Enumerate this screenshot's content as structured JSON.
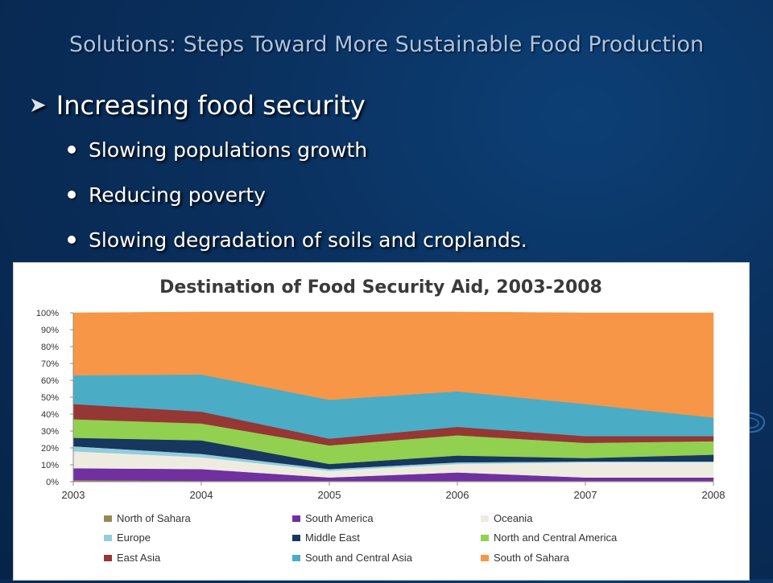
{
  "slide": {
    "title": "Solutions: Steps Toward More Sustainable Food Production",
    "main_bullet": "Increasing food security",
    "sub_bullets": [
      "Slowing populations growth",
      "Reducing poverty",
      "Slowing degradation of soils and croplands."
    ]
  },
  "colors": {
    "title_text": "#a9c4e4",
    "background": "#0a2f5c"
  },
  "chart_data": {
    "type": "area",
    "stacked": true,
    "percent": true,
    "title": "Destination of Food Security Aid, 2003-2008",
    "xlabel": "",
    "ylabel": "",
    "x": [
      "2003",
      "2004",
      "2005",
      "2006",
      "2007",
      "2008"
    ],
    "yticks": [
      "0%",
      "10%",
      "20%",
      "30%",
      "40%",
      "50%",
      "60%",
      "70%",
      "80%",
      "90%",
      "100%"
    ],
    "ylim": [
      0,
      100
    ],
    "grid": false,
    "legend": "bottom",
    "series": [
      {
        "name": "North of Sahara",
        "color": "#948a54",
        "values": [
          1,
          0.5,
          0.5,
          0.5,
          0.5,
          0.5
        ]
      },
      {
        "name": "South America",
        "color": "#7030a0",
        "values": [
          7,
          7,
          2,
          5,
          2,
          2
        ]
      },
      {
        "name": "Oceania",
        "color": "#eeece1",
        "values": [
          10,
          7,
          4,
          5,
          9,
          9
        ]
      },
      {
        "name": "Europe",
        "color": "#93cddd",
        "values": [
          3,
          2,
          1,
          1,
          0.5,
          0.5
        ]
      },
      {
        "name": "Middle East",
        "color": "#17375e",
        "values": [
          5,
          8,
          3,
          4,
          2,
          4
        ]
      },
      {
        "name": "North and Central America",
        "color": "#92d050",
        "values": [
          11,
          10,
          11,
          12,
          9,
          8
        ]
      },
      {
        "name": "East Asia",
        "color": "#953735",
        "values": [
          9,
          7,
          4,
          5,
          4,
          3
        ]
      },
      {
        "name": "South and Central Asia",
        "color": "#4bacc6",
        "values": [
          17,
          22,
          23,
          21,
          19,
          11
        ]
      },
      {
        "name": "South  of Sahara",
        "color": "#f79646",
        "values": [
          37,
          37,
          52,
          47,
          54,
          62
        ]
      }
    ]
  }
}
